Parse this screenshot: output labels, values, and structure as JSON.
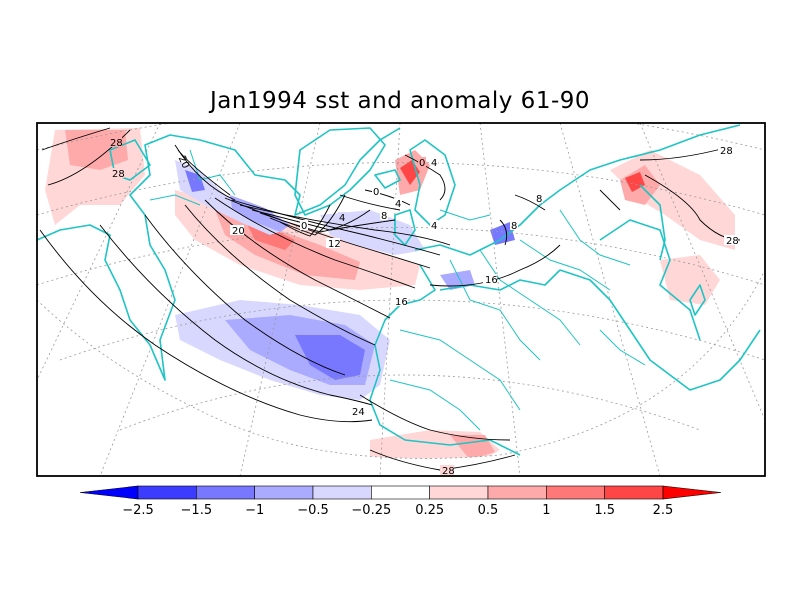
{
  "title": "Jan1994 sst and anomaly 61-90",
  "colors": {
    "land_outline": "#1fc4c4",
    "graticule": "#9a9a9a",
    "contour": "#000000",
    "frame": "#000000"
  },
  "colorbar": {
    "bins": [
      {
        "color": "#0000ff"
      },
      {
        "color": "#3c3cff"
      },
      {
        "color": "#7878ff"
      },
      {
        "color": "#aaaaff"
      },
      {
        "color": "#d8d8ff"
      },
      {
        "color": "#ffffff"
      },
      {
        "color": "#ffd7d7"
      },
      {
        "color": "#ffaaaa"
      },
      {
        "color": "#ff7878"
      },
      {
        "color": "#ff4646"
      },
      {
        "color": "#ff0000"
      }
    ],
    "labels": [
      "−2.5",
      "−1.5",
      "−1",
      "−0.5",
      "−0.25",
      "0.25",
      "0.5",
      "1",
      "1.5",
      "2.5"
    ]
  },
  "contour_labels": [
    "28",
    "28",
    "20",
    "20",
    "0",
    "4",
    "8",
    "12",
    "16",
    "16",
    "24",
    "28",
    "0",
    "0",
    "4",
    "4",
    "4",
    "8",
    "8",
    "28",
    "28"
  ]
}
